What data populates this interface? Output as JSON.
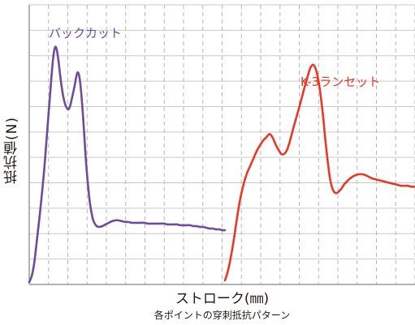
{
  "chart_data": {
    "type": "line",
    "title": "",
    "xlabel": "ストローク(㎜)",
    "ylabel": "抵抗値(N)",
    "caption": "各ポイントの穿刺抵抗パターン",
    "grid": true,
    "series": [
      {
        "name": "バックカット",
        "color": "#6e4c9a",
        "x": [
          0,
          3,
          6,
          9,
          13,
          18,
          22,
          26,
          28,
          30,
          32,
          34,
          36,
          38,
          40,
          42,
          45,
          48,
          50,
          52,
          56,
          58,
          60,
          62,
          64,
          66,
          68,
          70,
          74,
          78,
          82,
          86,
          90,
          94,
          98,
          102,
          106,
          110,
          114,
          118,
          122,
          126,
          130,
          134,
          138,
          142,
          146,
          150,
          154,
          158,
          162,
          166,
          170,
          174,
          178,
          182,
          186,
          190,
          194,
          198,
          202,
          206,
          210,
          214,
          218,
          222,
          226,
          230,
          234,
          238,
          241
        ],
        "y": [
          0.3,
          1.0,
          2.5,
          5.0,
          8.5,
          13.5,
          18.5,
          23.5,
          26.0,
          28.0,
          28.9,
          28.5,
          27.2,
          25.5,
          24.0,
          22.8,
          21.7,
          21.3,
          21.6,
          22.4,
          24.2,
          25.3,
          25.8,
          25.1,
          23.3,
          20.8,
          17.8,
          14.8,
          10.5,
          8.1,
          7.2,
          7.0,
          7.1,
          7.3,
          7.5,
          7.7,
          7.8,
          7.8,
          7.7,
          7.6,
          7.6,
          7.5,
          7.5,
          7.5,
          7.5,
          7.5,
          7.4,
          7.4,
          7.4,
          7.4,
          7.4,
          7.4,
          7.3,
          7.3,
          7.3,
          7.3,
          7.2,
          7.2,
          7.2,
          7.2,
          7.1,
          7.1,
          7.0,
          7.0,
          6.9,
          6.8,
          6.8,
          6.7,
          6.7,
          6.6,
          6.6
        ]
      },
      {
        "name": "K-3ランセット",
        "color": "#e83828",
        "x": [
          241,
          244,
          248,
          252,
          256,
          260,
          264,
          268,
          272,
          276,
          280,
          284,
          288,
          292,
          296,
          300,
          304,
          308,
          310,
          312,
          314,
          316,
          318,
          320,
          322,
          326,
          330,
          334,
          338,
          342,
          346,
          350,
          354,
          358,
          362,
          364,
          366,
          368,
          370,
          372,
          374,
          376,
          378,
          380,
          382,
          384,
          386,
          388,
          390,
          394,
          398,
          402,
          406,
          410,
          414,
          418,
          422,
          426,
          430,
          434,
          438,
          442,
          446,
          450,
          454,
          458,
          462,
          466,
          470,
          474
        ],
        "y": [
          0.5,
          1.4,
          3.2,
          5.5,
          8.2,
          10.5,
          12.2,
          13.5,
          14.4,
          15.3,
          16.2,
          16.9,
          17.5,
          17.9,
          18.3,
          17.8,
          16.9,
          16.2,
          15.9,
          15.8,
          15.9,
          16.1,
          16.5,
          17.1,
          17.8,
          19.3,
          20.7,
          22.1,
          23.6,
          25.0,
          26.3,
          26.7,
          25.8,
          23.6,
          20.3,
          18.2,
          16.3,
          14.6,
          13.1,
          12.1,
          11.5,
          11.2,
          11.1,
          11.2,
          11.4,
          11.6,
          11.9,
          12.2,
          12.4,
          12.8,
          13.1,
          13.3,
          13.4,
          13.4,
          13.3,
          13.1,
          12.9,
          12.8,
          12.7,
          12.6,
          12.5,
          12.4,
          12.3,
          12.2,
          12.1,
          12.0,
          12.0,
          12.0,
          11.9,
          11.9
        ]
      }
    ],
    "xlim": [
      0,
      475
    ],
    "ylim": [
      0,
      34
    ],
    "h_grid_count": 11,
    "v_grid_count": 20
  }
}
